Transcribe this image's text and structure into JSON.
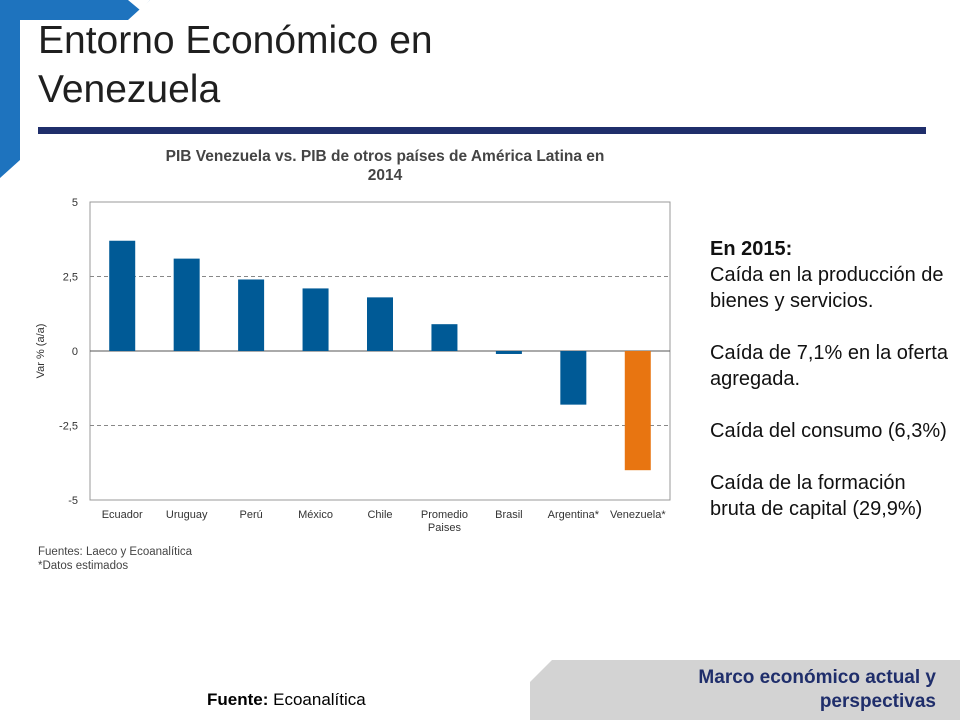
{
  "slide": {
    "title_line1": "Entorno Económico en",
    "title_line2": "Venezuela"
  },
  "side_panel": {
    "heading": "En 2015:",
    "items": [
      "Caída en la producción de bienes y servicios.",
      "Caída de 7,1% en la oferta agregada.",
      "Caída del consumo (6,3%)",
      "Caída de la formación bruta de capital (29,9%)"
    ]
  },
  "chart_notes": {
    "line1": "Fuentes: Laeco y Ecoanalítica",
    "line2": "*Datos estimados"
  },
  "source": {
    "label": "Fuente:",
    "value": "Ecoanalítica"
  },
  "footer": {
    "line1": "Marco económico actual y",
    "line2": "perspectivas"
  },
  "colors": {
    "bar_default": "#005a96",
    "bar_highlight": "#e87511",
    "title_rule": "#1f2e6b",
    "corner_accent": "#1e73be"
  },
  "chart_data": {
    "type": "bar",
    "title_line1": "PIB Venezuela vs. PIB de otros países de América Latina en",
    "title_line2": "2014",
    "ylabel": "Var % (a/a)",
    "xlabel": "",
    "ylim": [
      -5,
      5
    ],
    "yticks": [
      5,
      2.5,
      0,
      -2.5,
      -5
    ],
    "ytick_labels": [
      "5",
      "2,5",
      "0",
      "-2,5",
      "-5"
    ],
    "categories": [
      [
        "Ecuador"
      ],
      [
        "Uruguay"
      ],
      [
        "Perú"
      ],
      [
        "México"
      ],
      [
        "Chile"
      ],
      [
        "Promedio",
        "Paises"
      ],
      [
        "Brasil"
      ],
      [
        "Argentina*"
      ],
      [
        "Venezuela*"
      ]
    ],
    "values": [
      3.7,
      3.1,
      2.4,
      2.1,
      1.8,
      0.9,
      -0.1,
      -1.8,
      -4.0
    ],
    "highlight_index": 8,
    "grid": true
  }
}
